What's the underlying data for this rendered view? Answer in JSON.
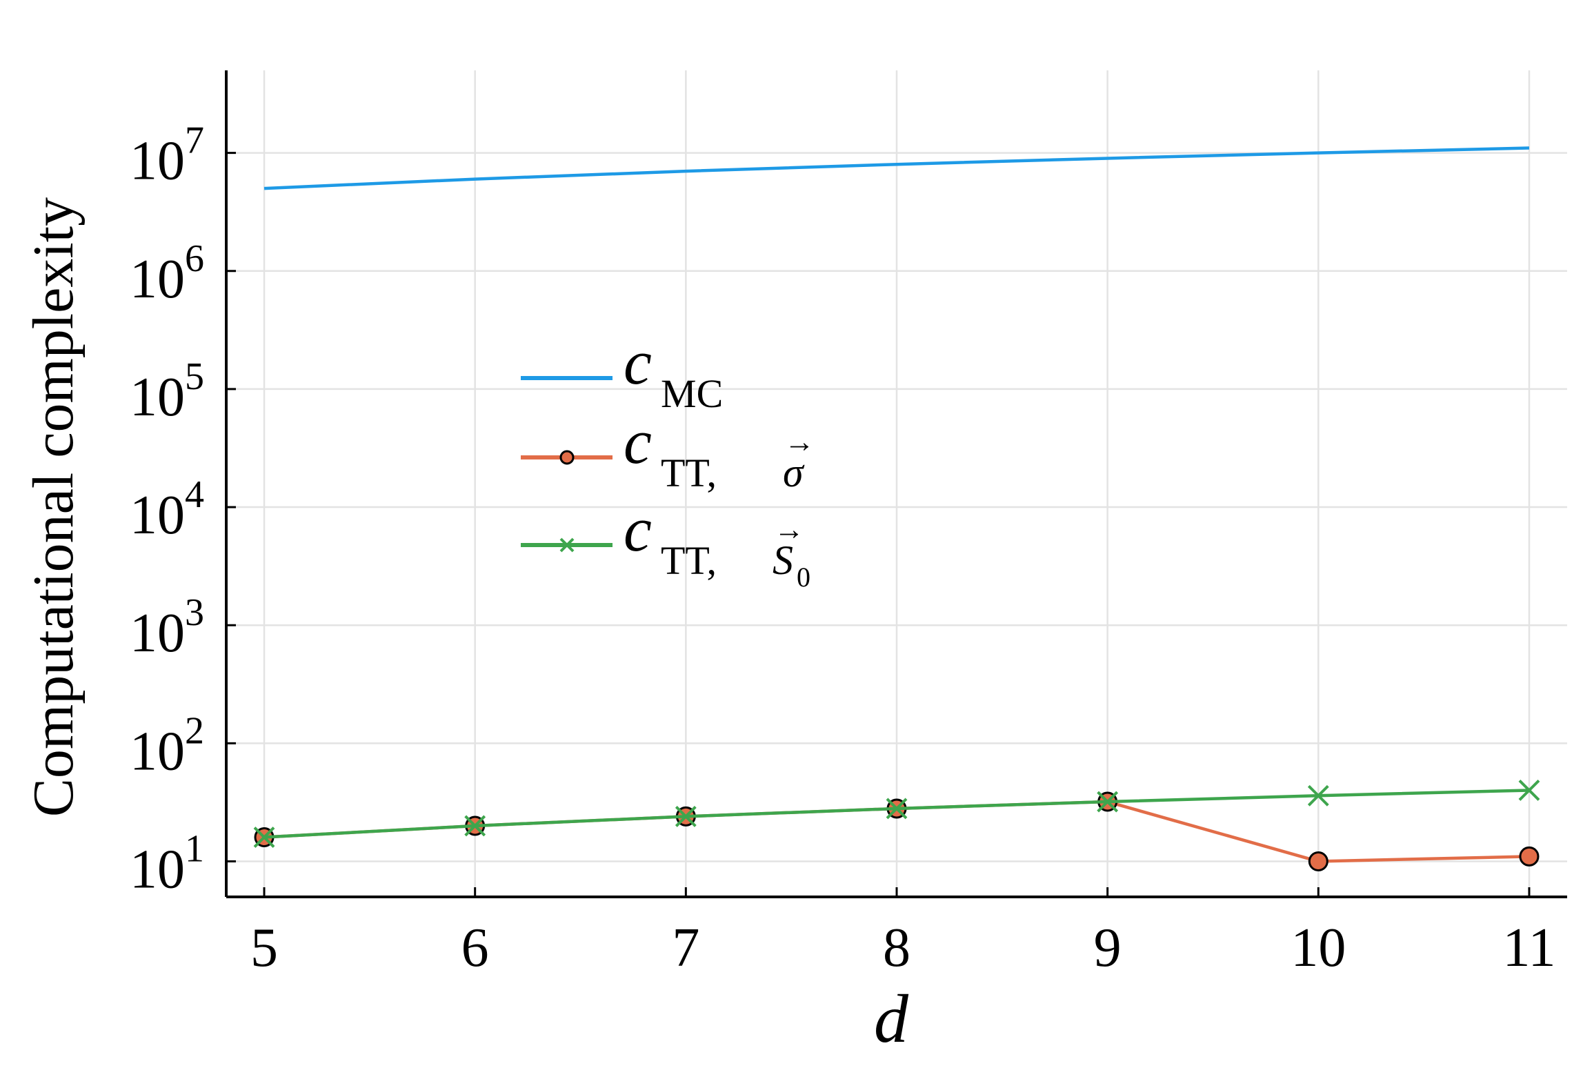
{
  "chart_data": {
    "type": "line",
    "xlabel": "d",
    "ylabel": "Computational complexity",
    "x": [
      5,
      6,
      7,
      8,
      9,
      10,
      11
    ],
    "xlim": [
      4.82,
      11.18
    ],
    "ylim": [
      5.0,
      50000000.0
    ],
    "yscale": "log",
    "x_ticks": [
      "5",
      "6",
      "7",
      "8",
      "9",
      "10",
      "11"
    ],
    "y_ticks": [
      {
        "value": 10,
        "base": "10",
        "exp": "1"
      },
      {
        "value": 100,
        "base": "10",
        "exp": "2"
      },
      {
        "value": 1000,
        "base": "10",
        "exp": "3"
      },
      {
        "value": 10000,
        "base": "10",
        "exp": "4"
      },
      {
        "value": 100000,
        "base": "10",
        "exp": "5"
      },
      {
        "value": 1000000,
        "base": "10",
        "exp": "6"
      },
      {
        "value": 10000000,
        "base": "10",
        "exp": "7"
      }
    ],
    "grid": true,
    "legend_position": "center-left",
    "series": [
      {
        "name": "c_MC",
        "legend": {
          "main": "c",
          "sub": "MC",
          "sup": ""
        },
        "color": "#1e9ae6",
        "marker": "none",
        "values": [
          5000000,
          6000000,
          7000000,
          8000000,
          9000000,
          10000000,
          11000000
        ]
      },
      {
        "name": "c_TT, σ",
        "legend": {
          "main": "c",
          "sub": "TT,",
          "sym": "σ",
          "arrow": "→"
        },
        "color": "#e26d48",
        "marker": "circle",
        "values": [
          16,
          20,
          24,
          28,
          32,
          10,
          11
        ]
      },
      {
        "name": "c_TT, S0",
        "legend": {
          "main": "c",
          "sub": "TT,",
          "sym": "S",
          "symsub": "0",
          "arrow": "→"
        },
        "color": "#3ea54d",
        "marker": "x",
        "values": [
          16,
          20,
          24,
          28,
          32,
          36,
          40
        ]
      }
    ]
  }
}
